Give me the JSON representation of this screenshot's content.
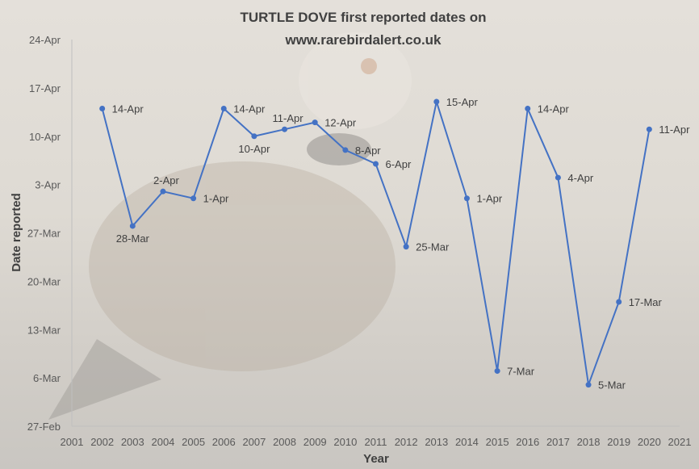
{
  "chart_data": {
    "type": "line",
    "title_line1": "TURTLE DOVE first reported dates on",
    "title_line2": "www.rarebirdalert.co.uk",
    "xlabel": "Year",
    "ylabel": "Date reported",
    "x_ticks": [
      "2001",
      "2002",
      "2003",
      "2004",
      "2005",
      "2006",
      "2007",
      "2008",
      "2009",
      "2010",
      "2011",
      "2012",
      "2013",
      "2014",
      "2015",
      "2016",
      "2017",
      "2018",
      "2019",
      "2020",
      "2021"
    ],
    "y_ticks": [
      "27-Feb",
      "6-Mar",
      "13-Mar",
      "20-Mar",
      "27-Mar",
      "3-Apr",
      "10-Apr",
      "17-Apr",
      "24-Apr"
    ],
    "ylim_days_after_27Feb": [
      0,
      56
    ],
    "xlim": [
      2001,
      2021
    ],
    "series_color": "#4472c4",
    "points": [
      {
        "year": 2002,
        "label": "14-Apr",
        "day": 46
      },
      {
        "year": 2003,
        "label": "28-Mar",
        "day": 29
      },
      {
        "year": 2004,
        "label": "2-Apr",
        "day": 34
      },
      {
        "year": 2005,
        "label": "1-Apr",
        "day": 33
      },
      {
        "year": 2006,
        "label": "14-Apr",
        "day": 46
      },
      {
        "year": 2007,
        "label": "10-Apr",
        "day": 42
      },
      {
        "year": 2008,
        "label": "11-Apr",
        "day": 43
      },
      {
        "year": 2009,
        "label": "12-Apr",
        "day": 44
      },
      {
        "year": 2010,
        "label": "8-Apr",
        "day": 40
      },
      {
        "year": 2011,
        "label": "6-Apr",
        "day": 38
      },
      {
        "year": 2012,
        "label": "25-Mar",
        "day": 26
      },
      {
        "year": 2013,
        "label": "15-Apr",
        "day": 47
      },
      {
        "year": 2014,
        "label": "1-Apr",
        "day": 33
      },
      {
        "year": 2015,
        "label": "7-Mar",
        "day": 8
      },
      {
        "year": 2016,
        "label": "14-Apr",
        "day": 46
      },
      {
        "year": 2017,
        "label": "4-Apr",
        "day": 36
      },
      {
        "year": 2018,
        "label": "5-Mar",
        "day": 6
      },
      {
        "year": 2019,
        "label": "17-Mar",
        "day": 18
      },
      {
        "year": 2020,
        "label": "11-Apr",
        "day": 43
      }
    ]
  }
}
